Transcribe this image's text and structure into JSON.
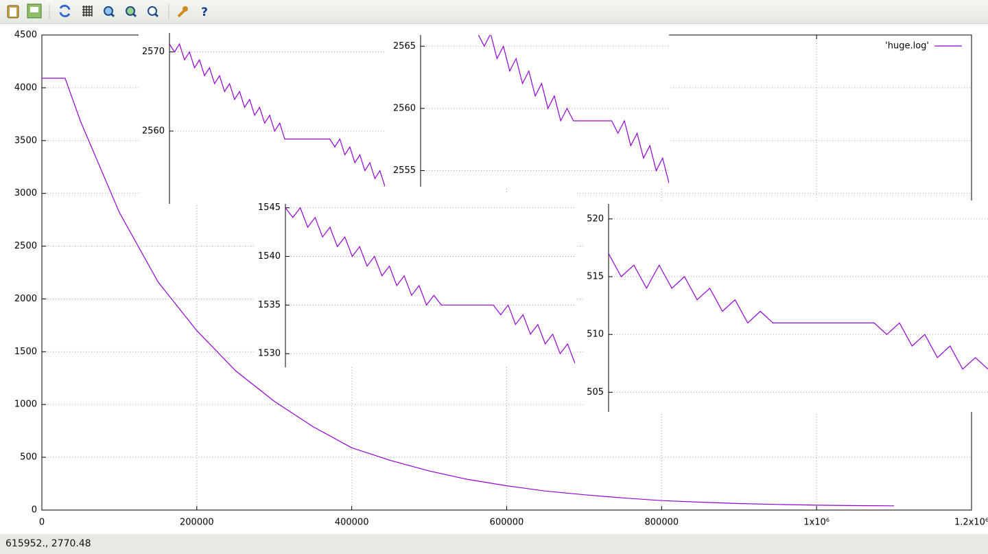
{
  "chart_data": [
    {
      "type": "line",
      "x": [
        0,
        30000,
        50000,
        100000,
        150000,
        200000,
        250000,
        300000,
        350000,
        400000,
        450000,
        500000,
        550000,
        600000,
        650000,
        700000,
        750000,
        800000,
        850000,
        900000,
        950000,
        1000000,
        1050000,
        1100000
      ],
      "series": [
        {
          "name": "'huge.log'",
          "color": "#9400d3",
          "values": [
            4090,
            4090,
            3680,
            2820,
            2160,
            1700,
            1320,
            1030,
            790,
            590,
            470,
            370,
            290,
            230,
            180,
            145,
            115,
            90,
            75,
            62,
            53,
            46,
            42,
            40
          ]
        }
      ],
      "xlim": [
        0,
        1200000
      ],
      "ylim": [
        0,
        4500
      ],
      "xticks": [
        0,
        200000,
        400000,
        600000,
        800000,
        {
          "value": 1000000,
          "label": "1x10⁶"
        },
        {
          "value": 1200000,
          "label": "1.2x10⁶"
        }
      ],
      "yticks": [
        0,
        500,
        1000,
        1500,
        2000,
        2500,
        3000,
        3500,
        4000,
        4500
      ],
      "grid": true,
      "legend": "top-right"
    },
    {
      "type": "line",
      "series": [
        {
          "color": "#9400d3",
          "values": [
            2571,
            2570,
            2571,
            2569,
            2570,
            2568,
            2569,
            2567,
            2568,
            2566,
            2567,
            2565,
            2566,
            2564,
            2565,
            2563,
            2564,
            2562,
            2563,
            2561,
            2562,
            2560,
            2561,
            2559,
            2559,
            2559,
            2559,
            2559,
            2559,
            2559,
            2559,
            2559,
            2559,
            2558,
            2559,
            2557,
            2558,
            2556,
            2557,
            2555,
            2556,
            2554,
            2555,
            2553
          ]
        }
      ],
      "ylim": [
        2550.8,
        2572.4
      ],
      "yticks": [
        2560,
        2570
      ],
      "grid": true
    },
    {
      "type": "line",
      "series": [
        {
          "color": "#9400d3",
          "values": [
            null,
            null,
            null,
            null,
            null,
            null,
            null,
            null,
            null,
            2566,
            2565,
            2566,
            2564,
            2565,
            2563,
            2564,
            2562,
            2563,
            2561,
            2562,
            2560,
            2561,
            2559,
            2560,
            2559,
            2559,
            2559,
            2559,
            2559,
            2559,
            2559,
            2558,
            2559,
            2557,
            2558,
            2556,
            2557,
            2555,
            2556,
            2554
          ]
        }
      ],
      "ylim": [
        2553.7,
        2565.9
      ],
      "yticks": [
        2555,
        2560,
        2565
      ],
      "grid": true
    },
    {
      "type": "line",
      "series": [
        {
          "color": "#9400d3",
          "values": [
            1545,
            1544,
            1545,
            1543,
            1544,
            1542,
            1543,
            1541,
            1542,
            1540,
            1541,
            1539,
            1540,
            1538,
            1539,
            1537,
            1538,
            1536,
            1537,
            1535,
            1536,
            1535,
            1535,
            1535,
            1535,
            1535,
            1535,
            1535,
            1535,
            1534,
            1535,
            1533,
            1534,
            1532,
            1533,
            1531,
            1532,
            1530,
            1531,
            1529
          ]
        }
      ],
      "ylim": [
        1528.6,
        1545.4
      ],
      "yticks": [
        1530,
        1535,
        1540,
        1545
      ],
      "grid": true
    },
    {
      "type": "line",
      "series": [
        {
          "color": "#9400d3",
          "values": [
            517,
            515,
            516,
            514,
            516,
            514,
            515,
            513,
            514,
            512,
            513,
            511,
            512,
            511,
            511,
            511,
            511,
            511,
            511,
            511,
            511,
            511,
            510,
            511,
            509,
            510,
            508,
            509,
            507,
            508,
            507
          ]
        }
      ],
      "ylim": [
        503.3,
        521.3
      ],
      "yticks": [
        505,
        510,
        515,
        520
      ],
      "grid": true
    }
  ],
  "status_bar": {
    "text": "615952., 2770.48"
  }
}
